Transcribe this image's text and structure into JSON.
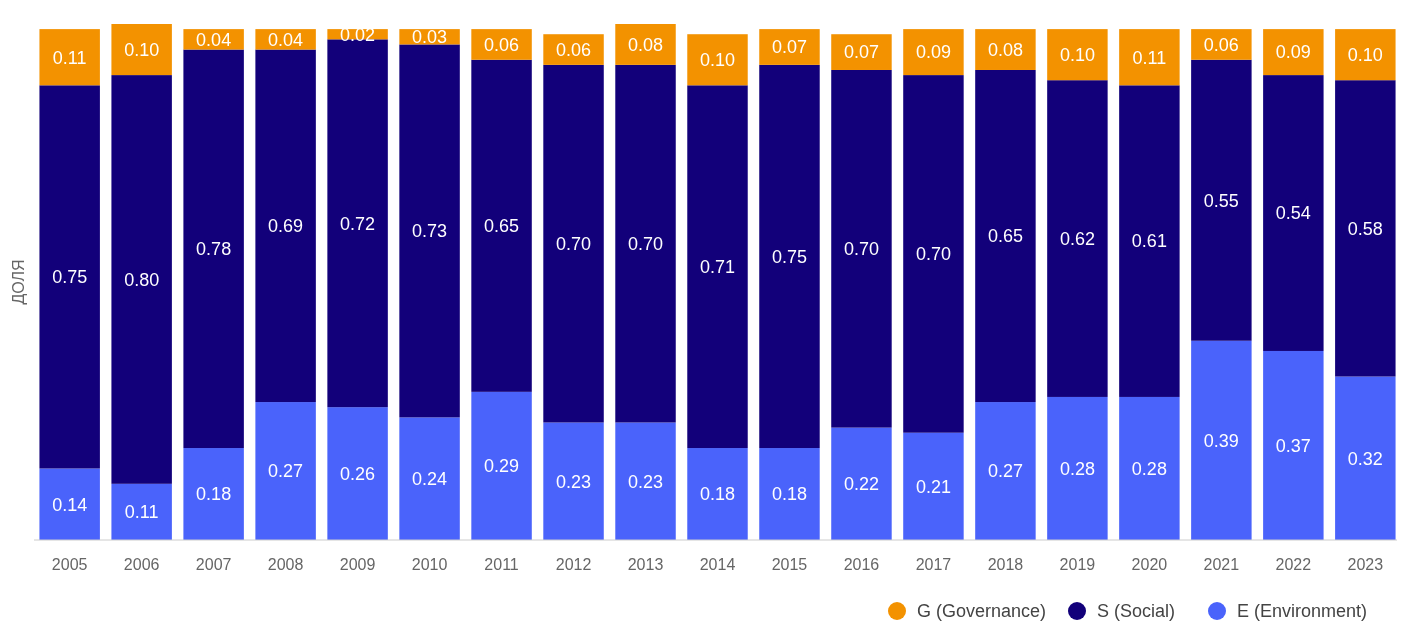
{
  "chart_data": {
    "type": "bar",
    "stacked": true,
    "ylabel": "ДОЛЯ",
    "categories": [
      "2005",
      "2006",
      "2007",
      "2008",
      "2009",
      "2010",
      "2011",
      "2012",
      "2013",
      "2014",
      "2015",
      "2016",
      "2017",
      "2018",
      "2019",
      "2020",
      "2021",
      "2022",
      "2023"
    ],
    "series": [
      {
        "name": "E (Environment)",
        "color": "#4a63fb",
        "values": [
          0.14,
          0.11,
          0.18,
          0.27,
          0.26,
          0.24,
          0.29,
          0.23,
          0.23,
          0.18,
          0.18,
          0.22,
          0.21,
          0.27,
          0.28,
          0.28,
          0.39,
          0.37,
          0.32
        ],
        "value_labels": [
          "0.14",
          "0.11",
          "0.18",
          "0.27",
          "0.26",
          "0.24",
          "0.29",
          "0.23",
          "0.23",
          "0.18",
          "0.18",
          "0.22",
          "0.21",
          "0.27",
          "0.28",
          "0.28",
          "0.39",
          "0.37",
          "0.32"
        ]
      },
      {
        "name": "S (Social)",
        "color": "#12007a",
        "values": [
          0.75,
          0.8,
          0.78,
          0.69,
          0.72,
          0.73,
          0.65,
          0.7,
          0.7,
          0.71,
          0.75,
          0.7,
          0.7,
          0.65,
          0.62,
          0.61,
          0.55,
          0.54,
          0.58
        ],
        "value_labels": [
          "0.75",
          "0.80",
          "0.78",
          "0.69",
          "0.72",
          "0.73",
          "0.65",
          "0.70",
          "0.70",
          "0.71",
          "0.75",
          "0.70",
          "0.70",
          "0.65",
          "0.62",
          "0.61",
          "0.55",
          "0.54",
          "0.58"
        ]
      },
      {
        "name": "G (Governance)",
        "color": "#f39200",
        "values": [
          0.11,
          0.1,
          0.04,
          0.04,
          0.02,
          0.03,
          0.06,
          0.06,
          0.08,
          0.1,
          0.07,
          0.07,
          0.09,
          0.08,
          0.1,
          0.11,
          0.06,
          0.09,
          0.1
        ],
        "value_labels": [
          "0.11",
          "0.10",
          "0.04",
          "0.04",
          "0.02",
          "0.03",
          "0.06",
          "0.06",
          "0.08",
          "0.10",
          "0.07",
          "0.07",
          "0.09",
          "0.08",
          "0.10",
          "0.11",
          "0.06",
          "0.09",
          "0.10"
        ]
      }
    ],
    "legend": "bottom right",
    "grid": false
  }
}
